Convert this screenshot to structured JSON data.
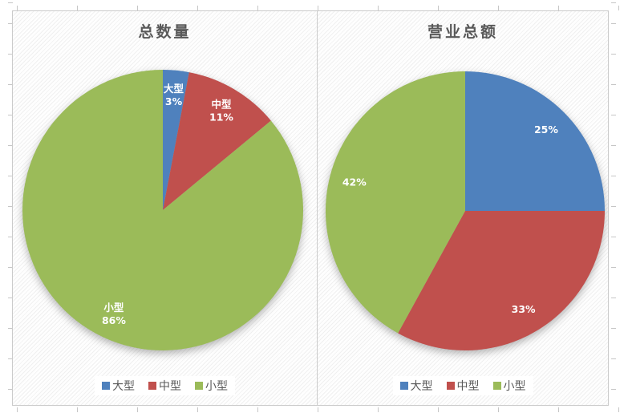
{
  "decor": {
    "panel_border": "#cbcbcb",
    "tick_color": "#c6c6c6",
    "text_color": "#595959",
    "label_color": "#ffffff",
    "legend_bg": "#ffffff"
  },
  "chart_data": [
    {
      "type": "pie",
      "title": "总数量",
      "categories": [
        "大型",
        "中型",
        "小型"
      ],
      "values": [
        3,
        11,
        86
      ],
      "unit": "%",
      "colors": [
        "#4F81BD",
        "#C0504D",
        "#9BBB59"
      ],
      "slice_labels": [
        [
          "大型",
          "3%"
        ],
        [
          "中型",
          "11%"
        ],
        [
          "小型",
          "86%"
        ]
      ],
      "start_angle_deg": 0,
      "direction": "clockwise",
      "legend_position": "bottom",
      "legend": [
        "大型",
        "中型",
        "小型"
      ]
    },
    {
      "type": "pie",
      "title": "营业总额",
      "categories": [
        "大型",
        "中型",
        "小型"
      ],
      "values": [
        25,
        33,
        42
      ],
      "unit": "%",
      "colors": [
        "#4F81BD",
        "#C0504D",
        "#9BBB59"
      ],
      "slice_labels": [
        [
          "25%"
        ],
        [
          "33%"
        ],
        [
          "42%"
        ]
      ],
      "start_angle_deg": 0,
      "direction": "clockwise",
      "legend_position": "bottom",
      "legend": [
        "大型",
        "中型",
        "小型"
      ]
    }
  ]
}
